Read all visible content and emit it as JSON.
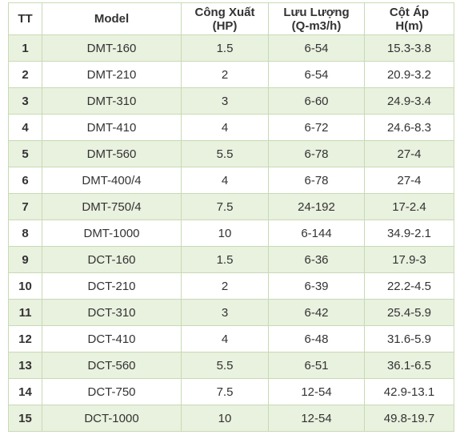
{
  "table": {
    "header": [
      [
        "TT"
      ],
      [
        "Model"
      ],
      [
        "Công Xuất",
        "(HP)"
      ],
      [
        "Lưu Lượng",
        "(Q-m3/h)"
      ],
      [
        "Cột Áp",
        "H(m)"
      ]
    ],
    "rows": [
      [
        "1",
        "DMT-160",
        "1.5",
        "6-54",
        "15.3-3.8"
      ],
      [
        "2",
        "DMT-210",
        "2",
        "6-54",
        "20.9-3.2"
      ],
      [
        "3",
        "DMT-310",
        "3",
        "6-60",
        "24.9-3.4"
      ],
      [
        "4",
        "DMT-410",
        "4",
        "6-72",
        "24.6-8.3"
      ],
      [
        "5",
        "DMT-560",
        "5.5",
        "6-78",
        "27-4"
      ],
      [
        "6",
        "DMT-400/4",
        "4",
        "6-78",
        "27-4"
      ],
      [
        "7",
        "DMT-750/4",
        "7.5",
        "24-192",
        "17-2.4"
      ],
      [
        "8",
        "DMT-1000",
        "10",
        "6-144",
        "34.9-2.1"
      ],
      [
        "9",
        "DCT-160",
        "1.5",
        "6-36",
        "17.9-3"
      ],
      [
        "10",
        "DCT-210",
        "2",
        "6-39",
        "22.2-4.5"
      ],
      [
        "11",
        "DCT-310",
        "3",
        "6-42",
        "25.4-5.9"
      ],
      [
        "12",
        "DCT-410",
        "4",
        "6-48",
        "31.6-5.9"
      ],
      [
        "13",
        "DCT-560",
        "5.5",
        "6-51",
        "36.1-6.5"
      ],
      [
        "14",
        "DCT-750",
        "7.5",
        "12-54",
        "42.9-13.1"
      ],
      [
        "15",
        "DCT-1000",
        "10",
        "12-54",
        "49.8-19.7"
      ]
    ]
  }
}
